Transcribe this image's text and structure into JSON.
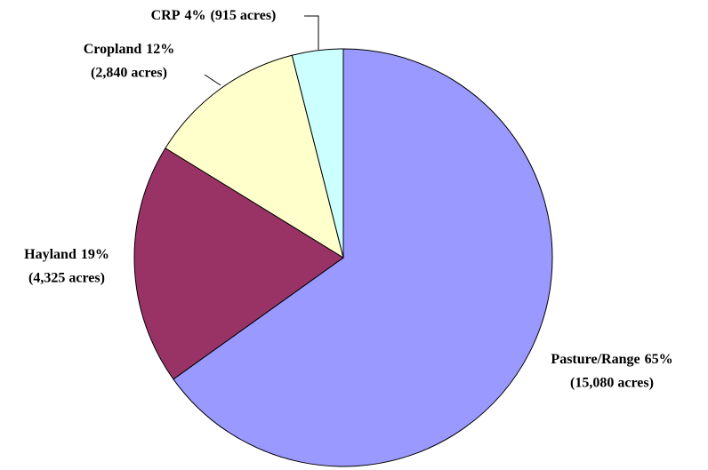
{
  "chart_data": {
    "type": "pie",
    "categories": [
      "Pasture/Range",
      "Hayland",
      "Cropland",
      "CRP"
    ],
    "values": [
      15080,
      4325,
      2840,
      915
    ],
    "value_labels": [
      "(15,080 acres)",
      "(4,325 acres)",
      "(2,840 acres)",
      "(915 acres)"
    ],
    "percent": [
      65,
      19,
      12,
      4
    ],
    "percent_labels": [
      "65%",
      "19%",
      "12%",
      "4%"
    ],
    "colors": [
      "#9999ff",
      "#993366",
      "#ffffcc",
      "#ccffff"
    ]
  }
}
